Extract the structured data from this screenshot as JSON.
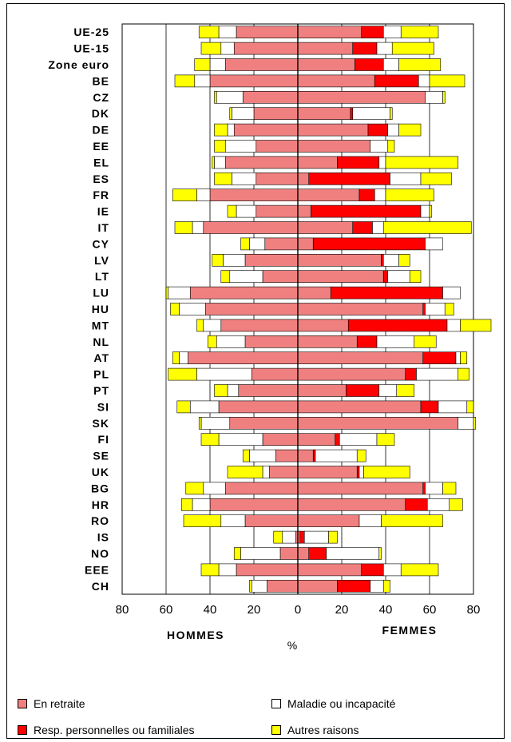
{
  "chart_data": {
    "type": "bar",
    "orientation": "horizontal",
    "layout": "population-pyramid",
    "categories": [
      "UE-25",
      "UE-15",
      "Zone euro",
      "BE",
      "CZ",
      "DK",
      "DE",
      "EE",
      "EL",
      "ES",
      "FR",
      "IE",
      "IT",
      "CY",
      "LV",
      "LT",
      "LU",
      "HU",
      "MT",
      "NL",
      "AT",
      "PL",
      "PT",
      "SI",
      "SK",
      "FI",
      "SE",
      "UK",
      "BG",
      "HR",
      "RO",
      "IS",
      "NO",
      "EEE",
      "CH"
    ],
    "xlim": [
      -80,
      80
    ],
    "x_ticks": [
      "80",
      "60",
      "40",
      "20",
      "0",
      "20",
      "40",
      "60",
      "80"
    ],
    "xlabel": "%",
    "left_label": "HOMMES",
    "right_label": "FEMMES",
    "grid": true,
    "colors": {
      "retraite": "#f08080",
      "resp": "#ff0000",
      "maladie": "#ffffff",
      "autres": "#ffff00"
    },
    "hommes": [
      {
        "name": "En retraite",
        "values": [
          28,
          29,
          33,
          40,
          25,
          20,
          29,
          19,
          33,
          19,
          40,
          19,
          43,
          15,
          24,
          16,
          49,
          42,
          35,
          24,
          50,
          21,
          27,
          36,
          31,
          16,
          10,
          13,
          33,
          40,
          24,
          1,
          8,
          28,
          14
        ]
      },
      {
        "name": "Resp. personnelles ou familiales",
        "values": [
          0,
          0,
          0,
          0,
          0,
          0,
          0,
          0,
          0,
          0,
          0,
          0,
          0,
          0,
          0,
          0,
          0,
          0,
          0,
          0,
          0,
          0,
          0,
          0,
          0,
          0,
          0,
          0,
          0,
          0,
          0,
          0,
          0,
          0,
          0
        ]
      },
      {
        "name": "Maladie ou incapacité",
        "values": [
          8,
          6,
          7,
          7,
          12,
          10,
          3,
          14,
          5,
          11,
          6,
          9,
          5,
          7,
          10,
          15,
          10,
          12,
          8,
          13,
          4,
          25,
          5,
          13,
          13,
          20,
          12,
          3,
          10,
          8,
          11,
          6,
          18,
          8,
          7
        ]
      },
      {
        "name": "Autres raisons",
        "values": [
          9,
          9,
          7,
          9,
          1,
          1,
          6,
          5,
          1,
          8,
          11,
          4,
          8,
          4,
          5,
          4,
          1,
          4,
          3,
          4,
          3,
          13,
          6,
          6,
          1,
          8,
          3,
          16,
          8,
          5,
          17,
          4,
          3,
          8,
          1
        ]
      }
    ],
    "femmes": [
      {
        "name": "En retraite",
        "values": [
          29,
          25,
          26,
          35,
          58,
          24,
          32,
          33,
          18,
          5,
          28,
          6,
          25,
          7,
          38,
          39,
          15,
          57,
          23,
          27,
          57,
          49,
          22,
          56,
          73,
          17,
          7,
          27,
          57,
          49,
          28,
          1,
          5,
          29,
          18
        ]
      },
      {
        "name": "Resp. personnelles ou familiales",
        "values": [
          10,
          11,
          13,
          20,
          0,
          1,
          9,
          0,
          19,
          37,
          7,
          50,
          9,
          51,
          1,
          2,
          51,
          1,
          45,
          9,
          15,
          5,
          15,
          8,
          0,
          2,
          1,
          1,
          1,
          10,
          0,
          2,
          8,
          10,
          15
        ]
      },
      {
        "name": "Maladie ou incapacité",
        "values": [
          8,
          7,
          7,
          5,
          8,
          17,
          5,
          8,
          3,
          14,
          5,
          4,
          5,
          8,
          7,
          10,
          8,
          9,
          6,
          17,
          2,
          19,
          8,
          13,
          7,
          17,
          19,
          2,
          8,
          10,
          10,
          11,
          24,
          8,
          6
        ]
      },
      {
        "name": "Autres raisons",
        "values": [
          17,
          19,
          19,
          16,
          1,
          1,
          10,
          3,
          33,
          14,
          22,
          1,
          40,
          0,
          5,
          5,
          0,
          4,
          14,
          10,
          3,
          5,
          8,
          3,
          1,
          8,
          4,
          21,
          6,
          6,
          28,
          4,
          1,
          17,
          3
        ]
      }
    ]
  },
  "legend": [
    {
      "key": "retraite",
      "label": "En retraite"
    },
    {
      "key": "maladie",
      "label": "Maladie ou incapacité"
    },
    {
      "key": "resp",
      "label": "Resp. personnelles ou familiales"
    },
    {
      "key": "autres",
      "label": "Autres raisons"
    }
  ]
}
